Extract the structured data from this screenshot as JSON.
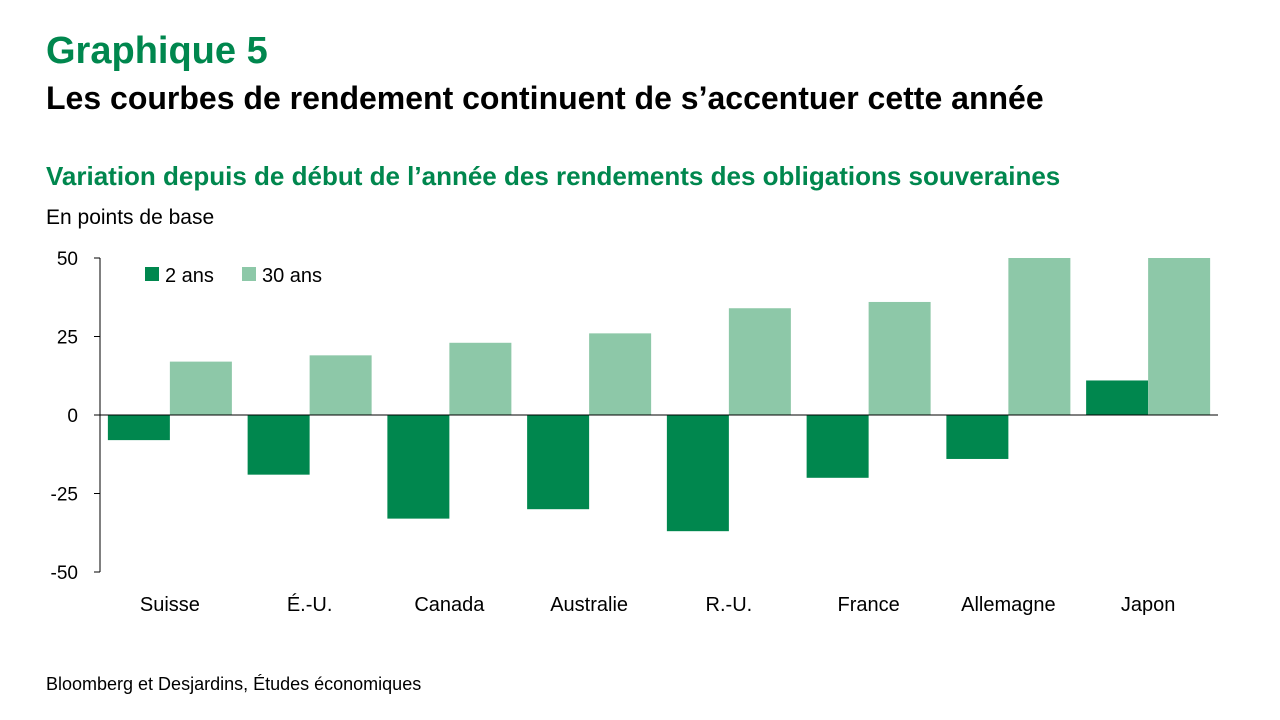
{
  "header": {
    "graph_number": "Graphique 5",
    "title": "Les courbes de rendement continuent de s’accentuer cette année"
  },
  "footer": {
    "source": "Bloomberg et Desjardins, Études économiques"
  },
  "chart_data": {
    "type": "bar",
    "title": "Variation depuis de début de l’année des rendements des obligations souveraines",
    "ylabel": "En points de base",
    "xlabel": "",
    "categories": [
      "Suisse",
      "É.-U.",
      "Canada",
      "Australie",
      "R.-U.",
      "France",
      "Allemagne",
      "Japon"
    ],
    "series": [
      {
        "name": "2 ans",
        "values": [
          -8,
          -19,
          -33,
          -30,
          -37,
          -20,
          -14,
          11
        ],
        "color": "#00874E"
      },
      {
        "name": "30 ans",
        "values": [
          17,
          19,
          23,
          26,
          34,
          36,
          50,
          50
        ],
        "color": "#8DC8A8"
      }
    ],
    "ylim": [
      -50,
      50
    ],
    "yticks": [
      50,
      25,
      0,
      -25,
      -50
    ],
    "grid": false,
    "legend_position": "top-left"
  }
}
